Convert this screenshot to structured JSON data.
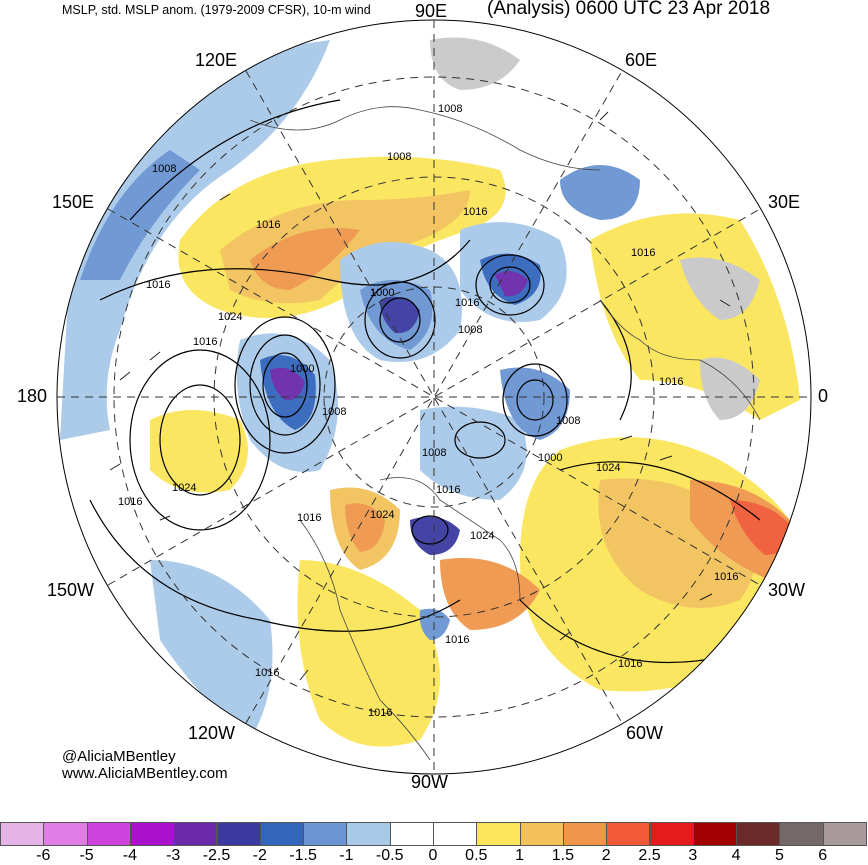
{
  "header": {
    "left_title": "MSLP, std. MSLP anom. (1979-2009 CFSR), 10-m wind",
    "right_title": "(Analysis) 0600 UTC 23 Apr 2018"
  },
  "longitude_labels": {
    "e90": "90E",
    "e60": "60E",
    "e120": "120E",
    "e150": "150E",
    "e30": "30E",
    "lon180": "180",
    "lon0": "0",
    "w150": "150W",
    "w30": "30W",
    "w120": "120W",
    "w60": "60W",
    "w90": "90W"
  },
  "credits": {
    "handle": "@AliciaMBentley",
    "website": "www.AliciaMBentley.com"
  },
  "isobar_labels": [
    "1008",
    "1008",
    "1008",
    "1016",
    "1016",
    "1024",
    "1016",
    "1000",
    "1008",
    "1016",
    "1000",
    "1008",
    "1016",
    "1008",
    "1000",
    "1008",
    "1024",
    "1016",
    "1016",
    "1024",
    "1016",
    "1024",
    "1016",
    "1016",
    "1016",
    "1016",
    "1024",
    "1016",
    "1016",
    "1016"
  ],
  "colorbar": {
    "labels": [
      "-6",
      "-5",
      "-4",
      "-3",
      "-2.5",
      "-2",
      "-1.5",
      "-1",
      "-0.5",
      "0",
      "0.5",
      "1",
      "1.5",
      "2",
      "2.5",
      "3",
      "4",
      "5",
      "6"
    ],
    "colors": [
      "#e6b3e6",
      "#e07ee6",
      "#cc44dd",
      "#aa11cc",
      "#6a2aaa",
      "#3a3aa0",
      "#3366bb",
      "#6a94d2",
      "#a8c8e8",
      "#ffffff",
      "#ffffff",
      "#fbe55a",
      "#f3c25a",
      "#f0964a",
      "#f05a36",
      "#e61a1a",
      "#a00000",
      "#6a2a2a",
      "#746868",
      "#a89a9a"
    ]
  }
}
